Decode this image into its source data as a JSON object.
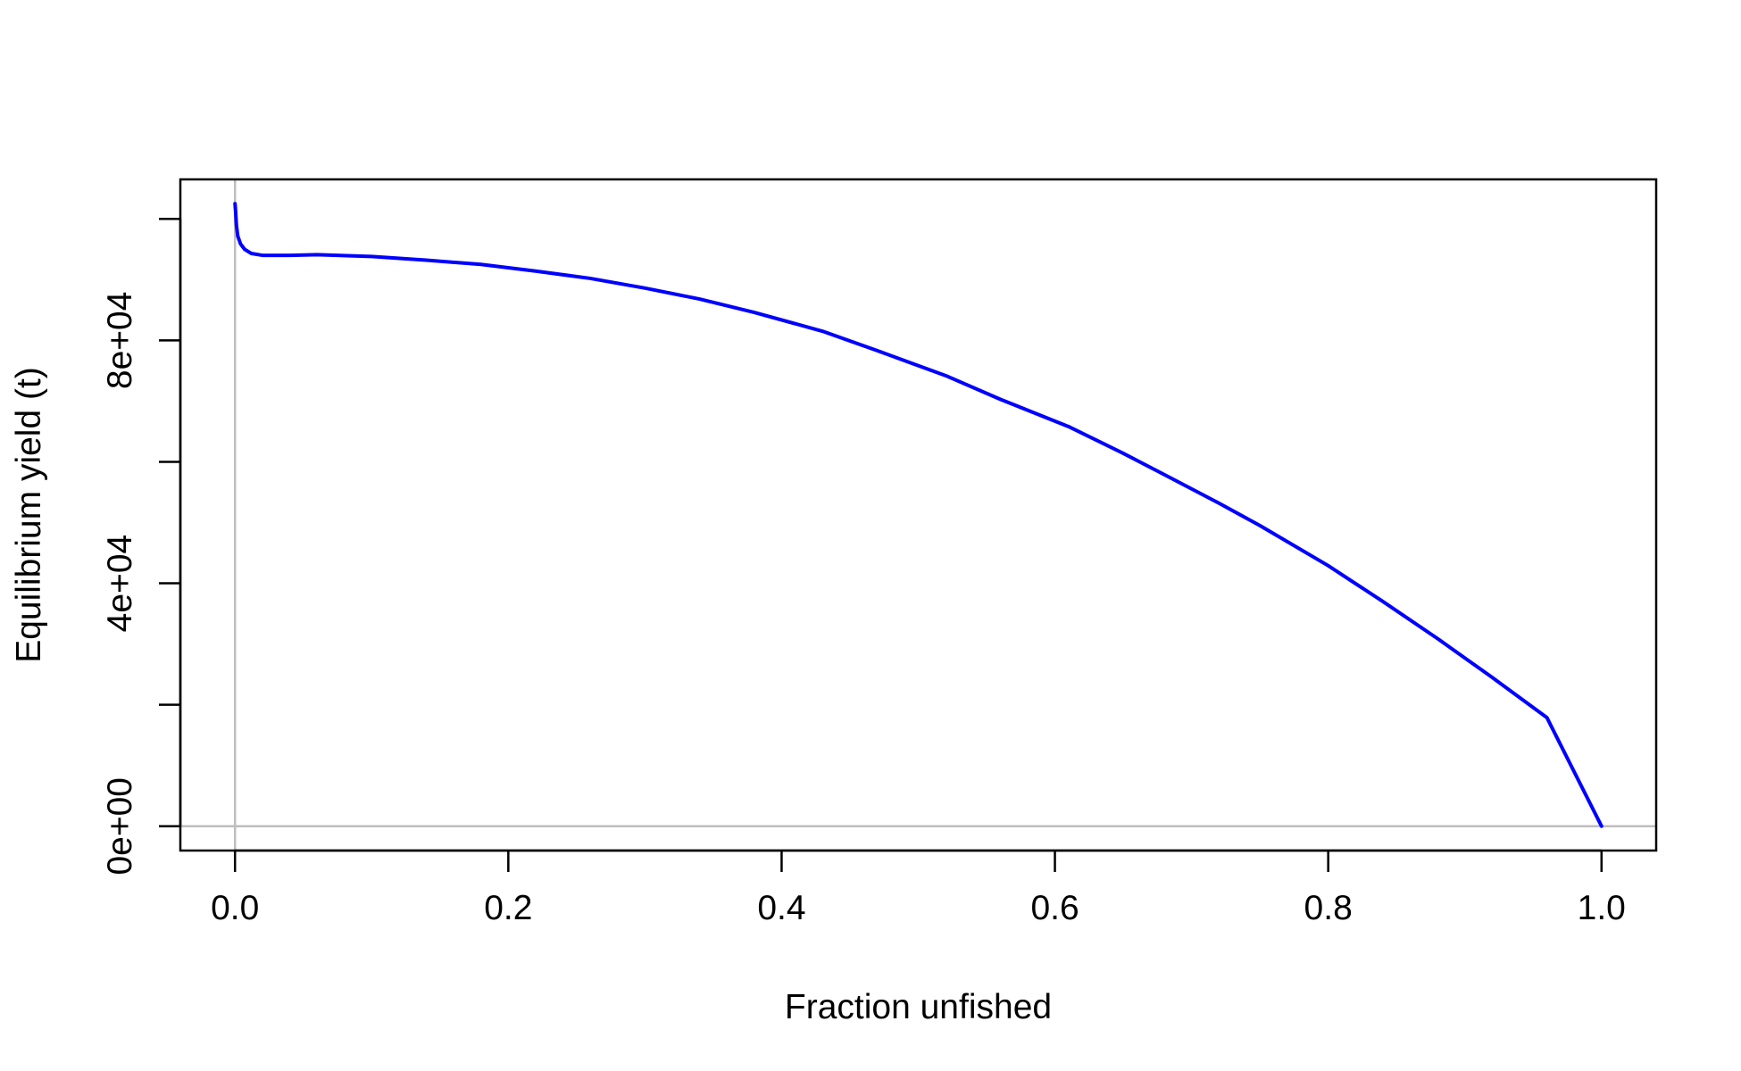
{
  "chart_data": {
    "type": "line",
    "title": "",
    "xlabel": "Fraction unfished",
    "ylabel": "Equilibrium yield (t)",
    "xlim": [
      -0.04,
      1.04
    ],
    "ylim": [
      -4000,
      106500
    ],
    "x_ticks": [
      {
        "value": 0.0,
        "label": "0.0"
      },
      {
        "value": 0.2,
        "label": "0.2"
      },
      {
        "value": 0.4,
        "label": "0.4"
      },
      {
        "value": 0.6,
        "label": "0.6"
      },
      {
        "value": 0.8,
        "label": "0.8"
      },
      {
        "value": 1.0,
        "label": "1.0"
      }
    ],
    "y_ticks": [
      {
        "value": 0,
        "label": "0e+00"
      },
      {
        "value": 20000,
        "label": ""
      },
      {
        "value": 40000,
        "label": "4e+04"
      },
      {
        "value": 60000,
        "label": ""
      },
      {
        "value": 80000,
        "label": "8e+04"
      },
      {
        "value": 100000,
        "label": ""
      }
    ],
    "reference_lines": {
      "vertical_x": 0,
      "horizontal_y": 0,
      "color": "#bebebe"
    },
    "grid": false,
    "series": [
      {
        "color": "#0000ff",
        "x": [
          0.0,
          0.0005,
          0.001,
          0.002,
          0.004,
          0.007,
          0.012,
          0.02,
          0.04,
          0.06,
          0.1,
          0.14,
          0.18,
          0.22,
          0.26,
          0.3,
          0.34,
          0.38,
          0.43,
          0.47,
          0.52,
          0.56,
          0.61,
          0.65,
          0.68,
          0.72,
          0.75,
          0.8,
          0.84,
          0.88,
          0.92,
          0.96,
          1.0
        ],
        "y": [
          102500,
          101000,
          99000,
          97200,
          95900,
          95000,
          94300,
          94000,
          94000,
          94100,
          93800,
          93200,
          92500,
          91400,
          90200,
          88600,
          86800,
          84600,
          81500,
          78300,
          74200,
          70300,
          65800,
          61400,
          57900,
          53200,
          49500,
          42900,
          37000,
          30900,
          24500,
          17900,
          10
        ]
      }
    ]
  }
}
